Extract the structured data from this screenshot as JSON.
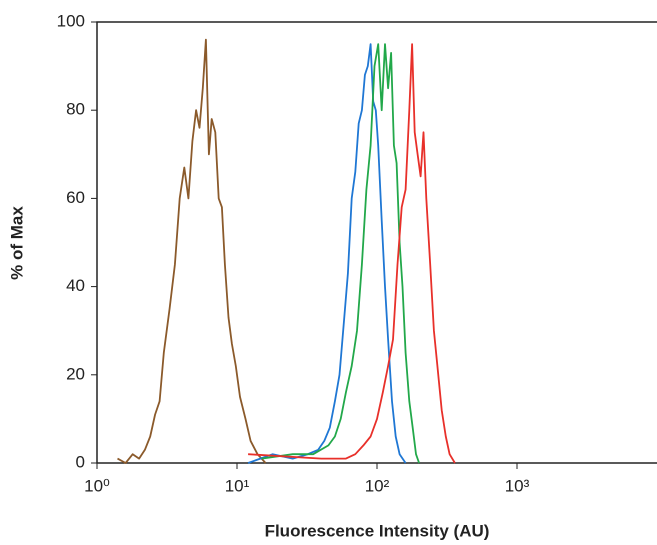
{
  "chart_data": {
    "type": "line",
    "x_label": "Fluorescence Intensity (AU)",
    "y_label": "% of Max",
    "x_log": true,
    "xlim": [
      1,
      10000
    ],
    "ylim": [
      0,
      100
    ],
    "xticks": [
      {
        "value": 1,
        "label": "10⁰"
      },
      {
        "value": 10,
        "label": "10¹"
      },
      {
        "value": 100,
        "label": "10²"
      },
      {
        "value": 1000,
        "label": "10³"
      }
    ],
    "yticks": [
      0,
      20,
      40,
      60,
      80,
      100
    ],
    "series": [
      {
        "color": "#8b5a2b",
        "x": [
          1.4,
          1.6,
          1.8,
          2.0,
          2.2,
          2.4,
          2.6,
          2.8,
          3.0,
          3.3,
          3.6,
          3.9,
          4.2,
          4.5,
          4.8,
          5.1,
          5.4,
          5.7,
          6.0,
          6.3,
          6.6,
          7.0,
          7.4,
          7.8,
          8.2,
          8.7,
          9.2,
          9.8,
          10.5,
          11.5,
          12.5,
          14,
          16
        ],
        "values": [
          1,
          0,
          2,
          1,
          3,
          6,
          11,
          14,
          25,
          35,
          45,
          60,
          67,
          60,
          73,
          80,
          76,
          85,
          96,
          70,
          78,
          75,
          60,
          58,
          45,
          33,
          27,
          22,
          15,
          10,
          5,
          2,
          0
        ]
      },
      {
        "color": "#1f77d4",
        "x": [
          12,
          18,
          25,
          32,
          38,
          42,
          46,
          50,
          54,
          58,
          62,
          66,
          70,
          74,
          78,
          82,
          86,
          90,
          94,
          98,
          102,
          108,
          114,
          120,
          128,
          136,
          145,
          160
        ],
        "values": [
          0,
          2,
          1,
          2,
          3,
          5,
          8,
          14,
          20,
          32,
          43,
          60,
          66,
          77,
          80,
          88,
          90,
          95,
          82,
          80,
          72,
          55,
          40,
          28,
          14,
          6,
          2,
          0
        ]
      },
      {
        "color": "#22a84a",
        "x": [
          15,
          25,
          35,
          45,
          50,
          55,
          60,
          66,
          72,
          78,
          84,
          90,
          96,
          102,
          108,
          114,
          120,
          126,
          132,
          138,
          145,
          152,
          160,
          170,
          180,
          190,
          200
        ],
        "values": [
          1,
          2,
          2,
          4,
          6,
          10,
          16,
          22,
          30,
          45,
          62,
          72,
          90,
          95,
          80,
          95,
          85,
          93,
          72,
          68,
          50,
          40,
          25,
          14,
          8,
          2,
          0
        ]
      },
      {
        "color": "#e8302a",
        "x": [
          12,
          40,
          60,
          70,
          80,
          90,
          100,
          110,
          120,
          130,
          140,
          150,
          160,
          170,
          178,
          186,
          195,
          205,
          215,
          225,
          240,
          255,
          270,
          290,
          310,
          330,
          360
        ],
        "values": [
          2,
          1,
          1,
          2,
          4,
          6,
          10,
          16,
          22,
          28,
          45,
          58,
          62,
          80,
          95,
          75,
          70,
          65,
          75,
          60,
          45,
          30,
          22,
          12,
          6,
          2,
          0
        ]
      }
    ]
  }
}
